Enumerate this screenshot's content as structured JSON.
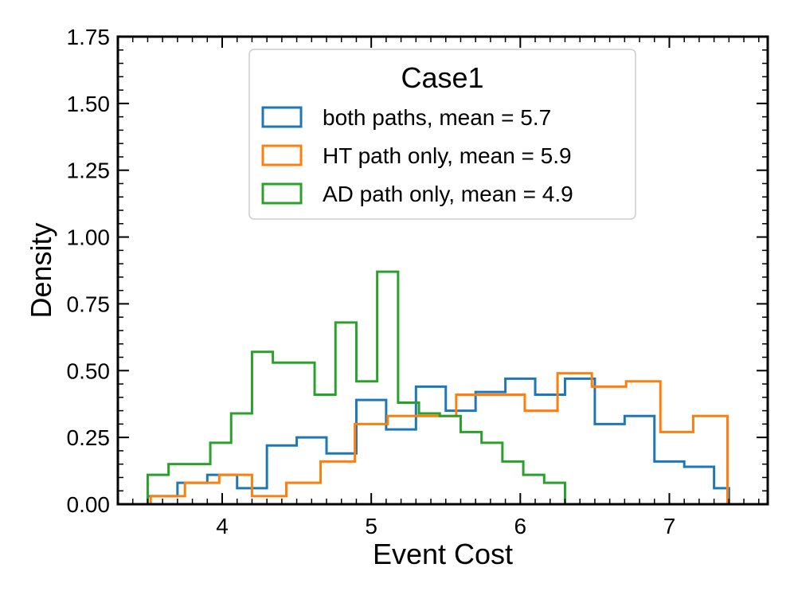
{
  "chart_data": {
    "type": "histogram",
    "xlabel": "Event Cost",
    "ylabel": "Density",
    "xlim": [
      3.3,
      7.66
    ],
    "ylim": [
      0,
      1.75
    ],
    "xticks": [
      "4",
      "5",
      "6",
      "7"
    ],
    "yticks": [
      "0.00",
      "0.25",
      "0.50",
      "0.75",
      "1.00",
      "1.25",
      "1.50",
      "1.75"
    ],
    "legend": {
      "title": "Case1",
      "placement": "upper-center"
    },
    "series": [
      {
        "name": "both paths, mean = 5.7",
        "color": "#1f77b4",
        "bin_edges": [
          3.5,
          3.7,
          3.9,
          4.1,
          4.3,
          4.5,
          4.7,
          4.9,
          5.1,
          5.3,
          5.5,
          5.7,
          5.9,
          6.1,
          6.3,
          6.5,
          6.7,
          6.9,
          7.1,
          7.3,
          7.4
        ],
        "values": [
          0.03,
          0.08,
          0.11,
          0.06,
          0.22,
          0.25,
          0.19,
          0.39,
          0.28,
          0.44,
          0.35,
          0.42,
          0.47,
          0.41,
          0.47,
          0.3,
          0.33,
          0.16,
          0.14,
          0.06
        ]
      },
      {
        "name": "HT path only, mean = 5.9",
        "color": "#ff7f0e",
        "bin_edges": [
          3.52,
          3.75,
          3.98,
          4.2,
          4.43,
          4.66,
          4.89,
          5.11,
          5.34,
          5.57,
          5.8,
          6.03,
          6.25,
          6.48,
          6.71,
          6.94,
          7.16,
          7.39
        ],
        "values": [
          0.03,
          0.08,
          0.11,
          0.03,
          0.08,
          0.16,
          0.3,
          0.33,
          0.33,
          0.41,
          0.41,
          0.35,
          0.49,
          0.44,
          0.46,
          0.27,
          0.33
        ]
      },
      {
        "name": "AD path only, mean = 4.9",
        "color": "#2ca02c",
        "bin_edges": [
          3.5,
          3.64,
          3.78,
          3.92,
          4.06,
          4.2,
          4.34,
          4.48,
          4.62,
          4.76,
          4.9,
          5.04,
          5.18,
          5.32,
          5.46,
          5.6,
          5.74,
          5.88,
          6.02,
          6.16,
          6.3
        ],
        "values": [
          0.11,
          0.15,
          0.15,
          0.23,
          0.34,
          0.57,
          0.53,
          0.53,
          0.41,
          0.68,
          0.46,
          0.87,
          0.38,
          0.34,
          0.33,
          0.27,
          0.23,
          0.16,
          0.11,
          0.08
        ]
      }
    ]
  }
}
